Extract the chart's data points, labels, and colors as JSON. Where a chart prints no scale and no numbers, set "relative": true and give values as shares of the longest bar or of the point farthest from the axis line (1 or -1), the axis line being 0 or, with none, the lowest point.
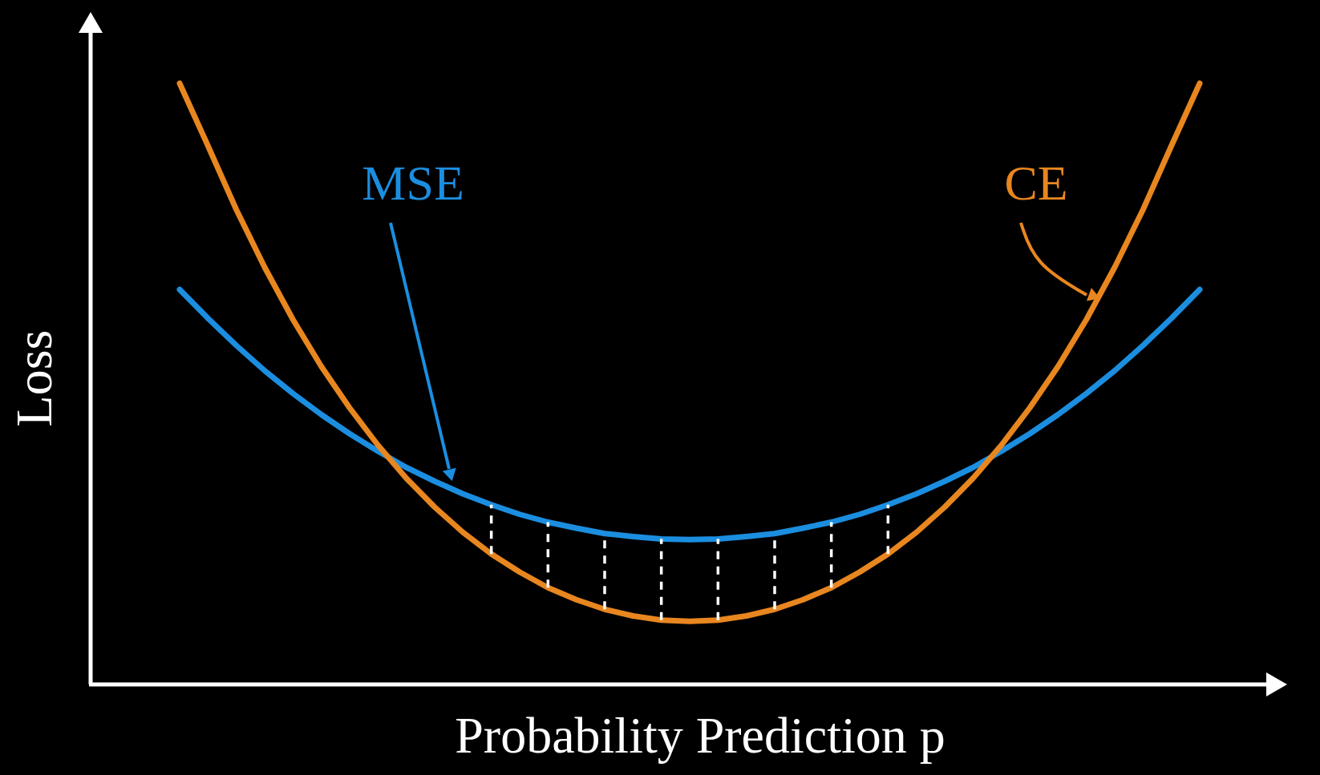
{
  "chart_data": {
    "type": "line",
    "relative": true,
    "xlabel": "Probability Prediction p",
    "ylabel": "Loss",
    "categories": [
      null,
      null,
      null,
      null,
      null,
      null,
      null,
      null,
      null,
      null,
      null,
      null,
      null,
      null,
      null,
      null,
      null,
      null,
      null,
      null,
      null,
      null,
      null,
      null,
      null,
      null,
      null,
      null,
      null,
      null,
      null,
      null,
      null,
      null,
      null,
      null,
      null
    ],
    "series": [
      {
        "name": "MSE",
        "color": "#1b8ee0",
        "values": [
          0.657,
          0.609,
          0.564,
          0.522,
          0.484,
          0.449,
          0.417,
          0.388,
          0.361,
          0.338,
          0.317,
          0.299,
          0.283,
          0.27,
          0.26,
          0.251,
          0.246,
          0.242,
          0.241,
          0.242,
          0.246,
          0.251,
          0.26,
          0.27,
          0.283,
          0.299,
          0.317,
          0.338,
          0.361,
          0.388,
          0.417,
          0.449,
          0.484,
          0.522,
          0.564,
          0.609,
          0.657
        ]
      },
      {
        "name": "CE",
        "color": "#e8861f",
        "values": [
          1.0,
          0.896,
          0.79,
          0.694,
          0.607,
          0.529,
          0.46,
          0.398,
          0.343,
          0.295,
          0.253,
          0.217,
          0.187,
          0.161,
          0.141,
          0.125,
          0.114,
          0.107,
          0.105,
          0.107,
          0.114,
          0.125,
          0.141,
          0.161,
          0.187,
          0.217,
          0.253,
          0.295,
          0.343,
          0.398,
          0.46,
          0.529,
          0.607,
          0.694,
          0.79,
          0.896,
          1.0
        ]
      }
    ]
  }
}
